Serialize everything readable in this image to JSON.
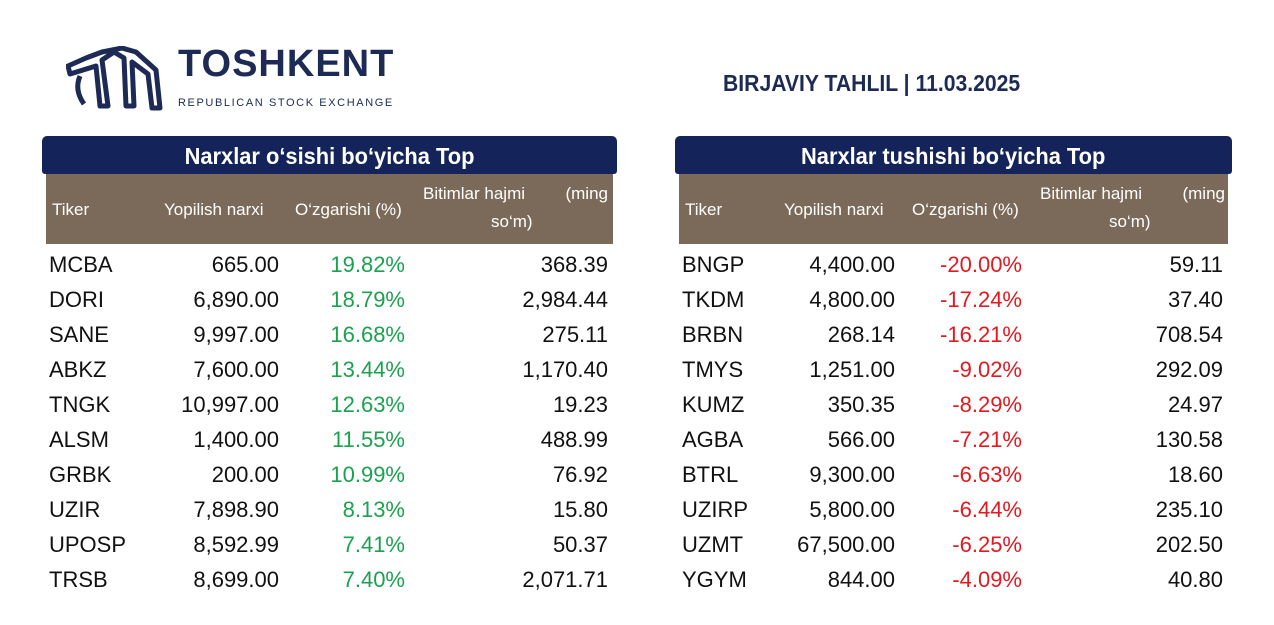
{
  "header": {
    "logo_name": "TOSHKENT",
    "logo_sub": "REPUBLICAN STOCK EXCHANGE",
    "report_title": "BIRJAVIY TAHLIL | 11.03.2025"
  },
  "columns": {
    "ticker": "Tiker",
    "close": "Yopilish narxi",
    "change": "O‘zgarishi (%)",
    "volume_line1": "Bitimlar hajmi",
    "volume_unit": "(ming",
    "volume_line2": "so‘m)"
  },
  "gainers": {
    "title": "Narxlar o‘sishi bo‘yicha Top",
    "rows": [
      {
        "ticker": "MCBA",
        "close": "665.00",
        "change": "19.82%",
        "volume": "368.39"
      },
      {
        "ticker": "DORI",
        "close": "6,890.00",
        "change": "18.79%",
        "volume": "2,984.44"
      },
      {
        "ticker": "SANE",
        "close": "9,997.00",
        "change": "16.68%",
        "volume": "275.11"
      },
      {
        "ticker": "ABKZ",
        "close": "7,600.00",
        "change": "13.44%",
        "volume": "1,170.40"
      },
      {
        "ticker": "TNGK",
        "close": "10,997.00",
        "change": "12.63%",
        "volume": "19.23"
      },
      {
        "ticker": "ALSM",
        "close": "1,400.00",
        "change": "11.55%",
        "volume": "488.99"
      },
      {
        "ticker": "GRBK",
        "close": "200.00",
        "change": "10.99%",
        "volume": "76.92"
      },
      {
        "ticker": "UZIR",
        "close": "7,898.90",
        "change": "8.13%",
        "volume": "15.80"
      },
      {
        "ticker": "UPOSP",
        "close": "8,592.99",
        "change": "7.41%",
        "volume": "50.37"
      },
      {
        "ticker": "TRSB",
        "close": "8,699.00",
        "change": "7.40%",
        "volume": "2,071.71"
      }
    ]
  },
  "losers": {
    "title": "Narxlar tushishi bo‘yicha Top",
    "rows": [
      {
        "ticker": "BNGP",
        "close": "4,400.00",
        "change": "-20.00%",
        "volume": "59.11"
      },
      {
        "ticker": "TKDM",
        "close": "4,800.00",
        "change": "-17.24%",
        "volume": "37.40"
      },
      {
        "ticker": "BRBN",
        "close": "268.14",
        "change": "-16.21%",
        "volume": "708.54"
      },
      {
        "ticker": "TMYS",
        "close": "1,251.00",
        "change": "-9.02%",
        "volume": "292.09"
      },
      {
        "ticker": "KUMZ",
        "close": "350.35",
        "change": "-8.29%",
        "volume": "24.97"
      },
      {
        "ticker": "AGBA",
        "close": "566.00",
        "change": "-7.21%",
        "volume": "130.58"
      },
      {
        "ticker": "BTRL",
        "close": "9,300.00",
        "change": "-6.63%",
        "volume": "18.60"
      },
      {
        "ticker": "UZIRP",
        "close": "5,800.00",
        "change": "-6.44%",
        "volume": "235.10"
      },
      {
        "ticker": "UZMT",
        "close": "67,500.00",
        "change": "-6.25%",
        "volume": "202.50"
      },
      {
        "ticker": "YGYM",
        "close": "844.00",
        "change": "-4.09%",
        "volume": "40.80"
      }
    ]
  },
  "colors": {
    "navy": "#14245a",
    "header_brown": "#7b6a59",
    "up": "#1aa24f",
    "down": "#e3191f"
  }
}
